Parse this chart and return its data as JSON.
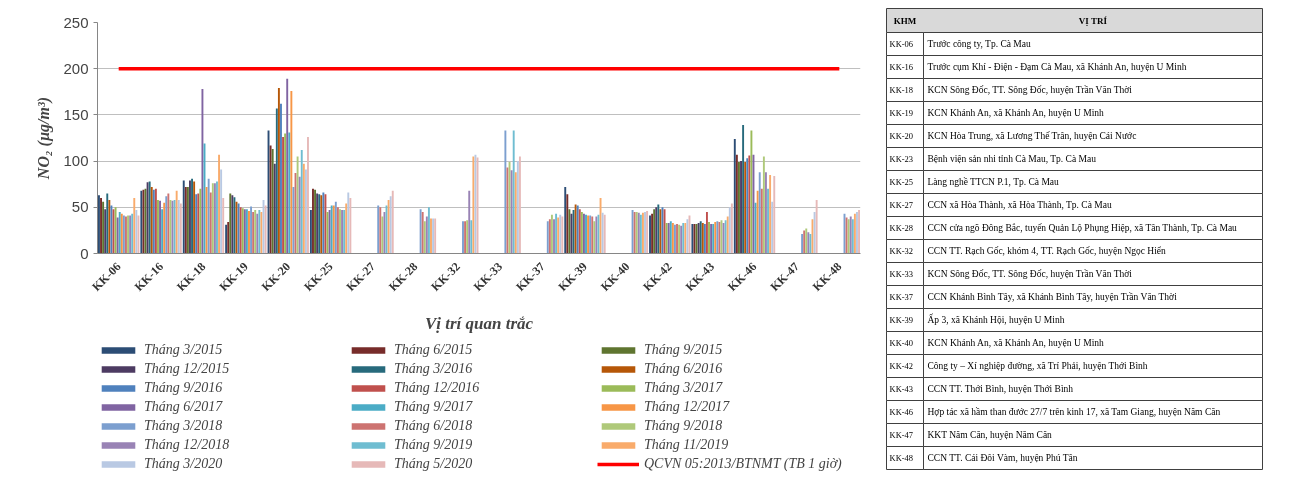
{
  "chart_data": [
    {
      "type": "bar",
      "xlabel": "Vị trí quan trắc",
      "ylabel": "NO₂ (µg/m³)",
      "categories": [
        "KK-06",
        "KK-16",
        "KK-18",
        "KK-19",
        "KK-20",
        "KK-25",
        "KK-27",
        "KK-28",
        "KK-32",
        "KK-33",
        "KK-37",
        "KK-39",
        "KK-40",
        "KK-42",
        "KK-43",
        "KK-46",
        "KK-47",
        "KK-48"
      ],
      "ylim": [
        0,
        250
      ],
      "yticks": [
        0,
        50,
        100,
        150,
        200,
        250
      ],
      "grid": "y",
      "legend": "bottom",
      "series": [
        {
          "name": "Tháng 3/2015",
          "color": "#2c4d75",
          "values": [
            63,
            68,
            79,
            31,
            133,
            47,
            null,
            null,
            null,
            null,
            null,
            72,
            null,
            41,
            32,
            124,
            null,
            null
          ]
        },
        {
          "name": "Tháng 6/2015",
          "color": "#772c2a",
          "values": [
            60,
            69,
            72,
            34,
            117,
            70,
            null,
            null,
            null,
            null,
            null,
            64,
            null,
            43,
            32,
            107,
            null,
            null
          ]
        },
        {
          "name": "Tháng 9/2015",
          "color": "#5f7530",
          "values": [
            56,
            70,
            72,
            65,
            113,
            69,
            null,
            null,
            null,
            null,
            null,
            48,
            null,
            48,
            32,
            99,
            null,
            null
          ]
        },
        {
          "name": "Tháng 12/2015",
          "color": "#4d3b62",
          "values": [
            48,
            77,
            79,
            63,
            97,
            65,
            null,
            null,
            null,
            null,
            null,
            43,
            null,
            50,
            33,
            100,
            null,
            null
          ]
        },
        {
          "name": "Tháng 3/2016",
          "color": "#276a7c",
          "values": [
            65,
            78,
            81,
            61,
            157,
            64,
            null,
            null,
            null,
            null,
            null,
            47,
            null,
            53,
            35,
            139,
            null,
            null
          ]
        },
        {
          "name": "Tháng 6/2016",
          "color": "#b65708",
          "values": [
            58,
            72,
            78,
            56,
            179,
            63,
            null,
            null,
            null,
            null,
            null,
            53,
            null,
            48,
            33,
            99,
            null,
            null
          ]
        },
        {
          "name": "Tháng 9/2016",
          "color": "#4f81bd",
          "values": [
            52,
            69,
            64,
            54,
            162,
            66,
            null,
            null,
            null,
            null,
            null,
            52,
            null,
            50,
            32,
            103,
            null,
            null
          ]
        },
        {
          "name": "Tháng 12/2016",
          "color": "#c0504d",
          "values": [
            48,
            70,
            65,
            50,
            126,
            64,
            null,
            null,
            null,
            null,
            null,
            48,
            null,
            48,
            45,
            106,
            null,
            null
          ]
        },
        {
          "name": "Tháng 3/2017",
          "color": "#9bbb59",
          "values": [
            50,
            58,
            70,
            49,
            130,
            45,
            null,
            null,
            null,
            null,
            null,
            45,
            null,
            33,
            34,
            133,
            null,
            null
          ]
        },
        {
          "name": "Tháng 6/2017",
          "color": "#8064a2",
          "values": [
            39,
            57,
            178,
            48,
            189,
            47,
            null,
            null,
            null,
            null,
            null,
            43,
            null,
            33,
            32,
            107,
            null,
            null
          ]
        },
        {
          "name": "Tháng 9/2017",
          "color": "#4bacc6",
          "values": [
            45,
            48,
            119,
            48,
            131,
            52,
            null,
            null,
            null,
            null,
            null,
            42,
            null,
            35,
            32,
            55,
            null,
            null
          ]
        },
        {
          "name": "Tháng 12/2017",
          "color": "#f79646",
          "values": [
            43,
            55,
            72,
            46,
            176,
            52,
            null,
            null,
            null,
            null,
            null,
            41,
            null,
            33,
            34,
            68,
            null,
            null
          ]
        },
        {
          "name": "Tháng 3/2018",
          "color": "#7c9fcf",
          "values": [
            41,
            62,
            81,
            51,
            72,
            56,
            52,
            48,
            35,
            133,
            35,
            41,
            47,
            31,
            35,
            88,
            21,
            43
          ]
        },
        {
          "name": "Tháng 6/2018",
          "color": "#cd7371",
          "values": [
            40,
            65,
            66,
            45,
            87,
            50,
            50,
            45,
            35,
            93,
            37,
            40,
            45,
            32,
            34,
            70,
            25,
            39
          ]
        },
        {
          "name": "Tháng 9/2018",
          "color": "#afc97a",
          "values": [
            41,
            58,
            76,
            47,
            105,
            48,
            40,
            35,
            36,
            99,
            42,
            35,
            45,
            31,
            36,
            105,
            27,
            37
          ]
        },
        {
          "name": "Tháng 12/2018",
          "color": "#9983b5",
          "values": [
            41,
            57,
            76,
            43,
            83,
            47,
            45,
            40,
            68,
            90,
            37,
            40,
            44,
            30,
            33,
            88,
            23,
            40
          ]
        },
        {
          "name": "Tháng 9/2019",
          "color": "#6fbdd1",
          "values": [
            43,
            58,
            78,
            47,
            112,
            47,
            52,
            50,
            36,
            133,
            43,
            42,
            42,
            33,
            36,
            70,
            21,
            37
          ]
        },
        {
          "name": "Tháng 11/2019",
          "color": "#f9ab6b",
          "values": [
            60,
            68,
            107,
            45,
            97,
            54,
            58,
            38,
            105,
            88,
            39,
            60,
            44,
            33,
            40,
            85,
            37,
            43
          ]
        },
        {
          "name": "Tháng 3/2020",
          "color": "#b9c9e3",
          "values": [
            47,
            58,
            91,
            58,
            91,
            66,
            62,
            38,
            107,
            100,
            42,
            44,
            45,
            37,
            50,
            56,
            45,
            45
          ]
        },
        {
          "name": "Tháng 5/2020",
          "color": "#e6b9b8",
          "values": [
            41,
            54,
            60,
            52,
            126,
            60,
            68,
            38,
            104,
            105,
            40,
            42,
            46,
            41,
            54,
            84,
            58,
            47
          ]
        },
        {
          "type": "line",
          "name": "QCVN 05:2013/BTNMT (TB 1 giờ)",
          "color": "#ff0000",
          "values": [
            200,
            200,
            200,
            200,
            200,
            200,
            200,
            200,
            200,
            200,
            200,
            200,
            200,
            200,
            200,
            200,
            200,
            200
          ]
        }
      ]
    },
    {
      "type": "other",
      "categories": [
        "KHM",
        "VỊ TRÍ"
      ],
      "y_categories": [
        "KK-06",
        "KK-16",
        "KK-18",
        "KK-19",
        "KK-20",
        "KK-23",
        "KK-25",
        "KK-27",
        "KK-28",
        "KK-32",
        "KK-33",
        "KK-37",
        "KK-39",
        "KK-40",
        "KK-42",
        "KK-43",
        "KK-46",
        "KK-47",
        "KK-48"
      ],
      "y2_categories": [
        "Trước công ty, Tp. Cà Mau",
        "Trước cụm Khí - Điện - Đạm Cà Mau, xã Khánh An, huyện U Minh",
        "KCN Sông Đốc, TT. Sông Đốc, huyện Trần Văn Thời",
        "KCN Khánh An, xã Khánh An, huyện U Minh",
        "KCN Hòa Trung, xã Lương Thế Trân, huyện Cái Nước",
        "Bệnh viện sản nhi tỉnh Cà Mau, Tp. Cà Mau",
        "Làng nghề TTCN P.1, Tp. Cà Mau",
        "CCN xã Hòa Thành, xã Hòa Thành, Tp. Cà Mau",
        "CCN cửa ngõ Đông Bắc, tuyến Quản Lộ Phụng Hiệp, xã Tân Thành, Tp. Cà Mau",
        "CCN TT. Rạch Gốc, khóm 4, TT. Rạch Gốc, huyện Ngọc Hiển",
        "KCN Sông Đốc, TT. Sông Đốc, huyện Trần Văn Thời",
        "CCN Khánh Bình Tây, xã Khánh Bình Tây, huyện Trần Văn Thời",
        "Ấp 3, xã Khánh Hội, huyện U Minh",
        "KCN Khánh An, xã Khánh An, huyện U Minh",
        "Công ty – Xí nghiệp đường, xã Trí Phải, huyện Thới Bình",
        "CCN TT. Thới Bình, huyện Thới Bình",
        "Hợp tác xã hầm than đước 27/7 trên kinh 17, xã Tam Giang, huyện Năm Căn",
        "KKT Năm Căn, huyện Năm Căn",
        "CCN TT. Cái Đôi Vàm, huyện Phú Tân"
      ]
    }
  ]
}
